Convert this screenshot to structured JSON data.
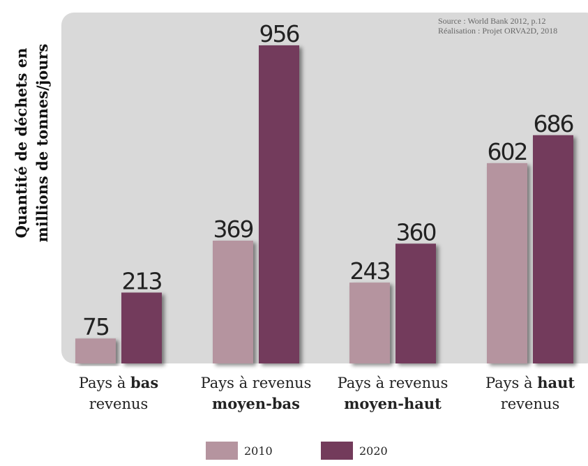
{
  "chart_data": {
    "type": "bar",
    "y_label": [
      "Quantité de déchets en",
      "millions de tonnes/jours"
    ],
    "source": [
      "Source : World Bank 2012, p.12",
      "Réalisation : Projet ORVA2D, 2018"
    ],
    "categories": [
      [
        [
          {
            "text": "Pays à "
          },
          {
            "text": "bas",
            "bold": true
          }
        ],
        [
          {
            "text": "revenus"
          }
        ]
      ],
      [
        [
          {
            "text": "Pays à revenus"
          }
        ],
        [
          {
            "text": "moyen-bas",
            "bold": true
          }
        ]
      ],
      [
        [
          {
            "text": "Pays à revenus"
          }
        ],
        [
          {
            "text": "moyen-haut",
            "bold": true
          }
        ]
      ],
      [
        [
          {
            "text": "Pays à "
          },
          {
            "text": "haut",
            "bold": true
          }
        ],
        [
          {
            "text": "revenus"
          }
        ]
      ]
    ],
    "series": [
      {
        "name": "2010",
        "color": "#b5949f",
        "values": [
          75,
          369,
          243,
          602
        ]
      },
      {
        "name": "2020",
        "color": "#733b5b",
        "values": [
          213,
          956,
          360,
          686
        ]
      }
    ],
    "legend": "bottom"
  }
}
